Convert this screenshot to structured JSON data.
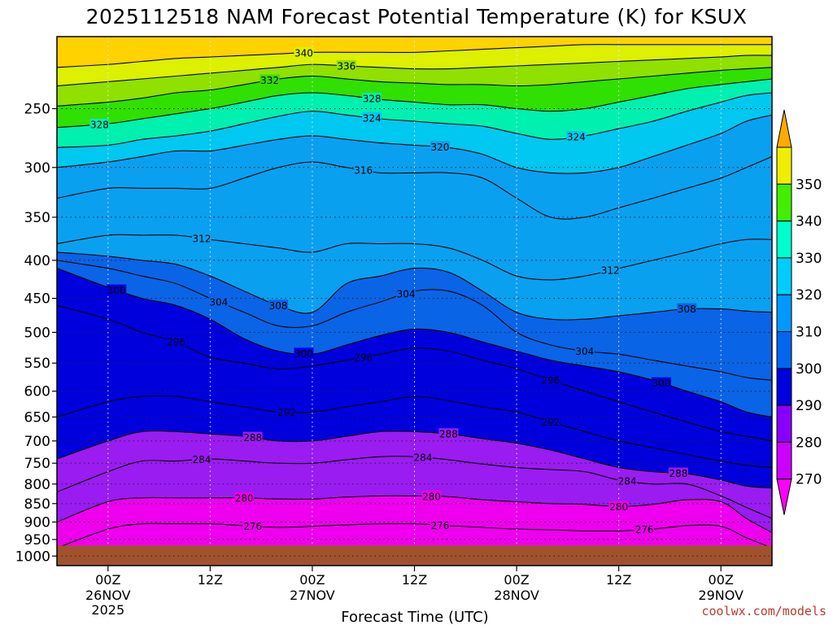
{
  "chart_data": {
    "type": "heatmap",
    "title": "2025112518 NAM Forecast Potential Temperature (K) for KSUX",
    "xlabel": "Forecast Time (UTC)",
    "ylabel": "",
    "credit": "coolwx.com/models",
    "y_scale": "log-pressure",
    "y_ticks": [
      "250",
      "300",
      "350",
      "400",
      "450",
      "500",
      "550",
      "600",
      "650",
      "700",
      "750",
      "800",
      "850",
      "900",
      "950",
      "1000"
    ],
    "x_ticks": [
      {
        "hour": 6,
        "label": "00Z",
        "sub1": "26NOV",
        "sub2": "2025"
      },
      {
        "hour": 18,
        "label": "12Z",
        "sub1": "",
        "sub2": ""
      },
      {
        "hour": 30,
        "label": "00Z",
        "sub1": "27NOV",
        "sub2": ""
      },
      {
        "hour": 42,
        "label": "12Z",
        "sub1": "",
        "sub2": ""
      },
      {
        "hour": 54,
        "label": "00Z",
        "sub1": "28NOV",
        "sub2": ""
      },
      {
        "hour": 66,
        "label": "12Z",
        "sub1": "",
        "sub2": ""
      },
      {
        "hour": 78,
        "label": "00Z",
        "sub1": "29NOV",
        "sub2": ""
      }
    ],
    "x_range_hours": [
      0,
      84
    ],
    "y_range_hpa": [
      200,
      1030
    ],
    "surface_pressure_hpa": 968,
    "colorbar": {
      "levels": [
        "270",
        "280",
        "290",
        "300",
        "310",
        "320",
        "330",
        "340",
        "350"
      ],
      "colors": [
        "#ff00ff",
        "#cc00ff",
        "#8800ff",
        "#0000dd",
        "#0066ee",
        "#0099ff",
        "#00ccff",
        "#00ffcc",
        "#44ee00",
        "#eeee00",
        "#ffaa00"
      ]
    },
    "profile_hours": [
      0,
      6,
      10,
      14,
      18,
      22,
      26,
      30,
      34,
      38,
      42,
      46,
      50,
      54,
      58,
      62,
      66,
      70,
      74,
      78,
      81,
      84
    ],
    "series": [
      {
        "name": "276",
        "p": [
          975,
          920,
          905,
          905,
          905,
          910,
          915,
          912,
          908,
          905,
          905,
          910,
          915,
          920,
          922,
          925,
          925,
          920,
          910,
          912,
          945,
          975
        ]
      },
      {
        "name": "280",
        "p": [
          900,
          845,
          835,
          835,
          835,
          835,
          838,
          838,
          833,
          830,
          830,
          832,
          840,
          845,
          850,
          852,
          858,
          852,
          840,
          845,
          890,
          930
        ]
      },
      {
        "name": "284",
        "p": [
          820,
          770,
          745,
          745,
          740,
          745,
          750,
          750,
          742,
          735,
          735,
          742,
          752,
          760,
          765,
          770,
          790,
          800,
          800,
          830,
          860,
          890
        ]
      },
      {
        "name": "288",
        "p": [
          740,
          700,
          680,
          680,
          685,
          690,
          700,
          700,
          690,
          680,
          680,
          685,
          695,
          705,
          720,
          740,
          760,
          770,
          775,
          790,
          805,
          810
        ]
      },
      {
        "name": "292",
        "p": [
          650,
          620,
          610,
          610,
          620,
          630,
          640,
          640,
          630,
          620,
          610,
          618,
          630,
          640,
          660,
          680,
          700,
          715,
          730,
          745,
          755,
          760
        ]
      },
      {
        "name": "296",
        "p": [
          460,
          480,
          500,
          515,
          540,
          550,
          560,
          555,
          545,
          535,
          525,
          530,
          545,
          560,
          580,
          600,
          620,
          640,
          660,
          680,
          690,
          700
        ]
      },
      {
        "name": "300",
        "p": [
          410,
          435,
          450,
          460,
          480,
          510,
          530,
          535,
          520,
          505,
          495,
          500,
          515,
          530,
          545,
          555,
          565,
          580,
          600,
          620,
          640,
          650
        ]
      },
      {
        "name": "304",
        "p": [
          400,
          410,
          420,
          430,
          450,
          470,
          490,
          490,
          470,
          455,
          440,
          440,
          460,
          500,
          520,
          530,
          535,
          545,
          555,
          565,
          575,
          580
        ]
      },
      {
        "name": "308",
        "p": [
          390,
          395,
          400,
          405,
          420,
          440,
          460,
          470,
          430,
          420,
          410,
          415,
          440,
          470,
          480,
          480,
          475,
          470,
          465,
          465,
          468,
          470
        ]
      },
      {
        "name": "312",
        "p": [
          380,
          370,
          370,
          370,
          375,
          380,
          385,
          390,
          380,
          380,
          380,
          385,
          400,
          420,
          425,
          420,
          410,
          400,
          390,
          380,
          375,
          375
        ]
      },
      {
        "name": "316",
        "p": [
          330,
          320,
          320,
          320,
          320,
          310,
          300,
          295,
          300,
          305,
          305,
          305,
          310,
          330,
          350,
          350,
          340,
          330,
          320,
          310,
          300,
          290
        ]
      },
      {
        "name": "320",
        "p": [
          300,
          295,
          290,
          285,
          285,
          280,
          275,
          272,
          275,
          278,
          280,
          282,
          288,
          300,
          305,
          305,
          300,
          290,
          280,
          270,
          260,
          255
        ]
      },
      {
        "name": "324",
        "p": [
          282,
          280,
          275,
          272,
          268,
          262,
          256,
          252,
          255,
          258,
          260,
          262,
          264,
          270,
          275,
          272,
          266,
          260,
          252,
          245,
          240,
          238
        ]
      },
      {
        "name": "328",
        "p": [
          265,
          262,
          258,
          254,
          250,
          245,
          240,
          238,
          240,
          243,
          245,
          247,
          247,
          250,
          252,
          250,
          245,
          240,
          235,
          232,
          230,
          228
        ]
      },
      {
        "name": "332",
        "p": [
          248,
          245,
          242,
          238,
          236,
          232,
          228,
          226,
          228,
          230,
          231,
          232,
          232,
          233,
          232,
          230,
          228,
          226,
          224,
          222,
          221,
          220
        ]
      },
      {
        "name": "336",
        "p": [
          233,
          230,
          228,
          226,
          224,
          222,
          220,
          218,
          219,
          220,
          221,
          221,
          220,
          219,
          218,
          217,
          216,
          215,
          214,
          213,
          212,
          212
        ]
      },
      {
        "name": "340",
        "p": [
          220,
          218,
          216,
          214,
          213,
          212,
          211,
          210,
          210,
          210,
          210,
          209,
          208,
          207,
          206,
          205,
          205,
          205,
          205,
          205,
          205,
          205
        ]
      }
    ],
    "contour_labels": [
      {
        "text": "340",
        "hour": 29,
        "series": "340"
      },
      {
        "text": "336",
        "hour": 34,
        "series": "336"
      },
      {
        "text": "332",
        "hour": 25,
        "series": "332"
      },
      {
        "text": "328",
        "hour": 37,
        "series": "328"
      },
      {
        "text": "324",
        "hour": 37,
        "series": "324"
      },
      {
        "text": "324",
        "hour": 61,
        "series": "324"
      },
      {
        "text": "328",
        "hour": 5,
        "series": "328"
      },
      {
        "text": "316",
        "hour": 36,
        "series": "316"
      },
      {
        "text": "320",
        "hour": 45,
        "series": "320"
      },
      {
        "text": "312",
        "hour": 17,
        "series": "312"
      },
      {
        "text": "308",
        "hour": 26,
        "series": "308"
      },
      {
        "text": "304",
        "hour": 41,
        "series": "304"
      },
      {
        "text": "312",
        "hour": 65,
        "series": "312"
      },
      {
        "text": "300",
        "hour": 7,
        "series": "300"
      },
      {
        "text": "304",
        "hour": 19,
        "series": "304"
      },
      {
        "text": "308",
        "hour": 74,
        "series": "308"
      },
      {
        "text": "296",
        "hour": 14,
        "series": "296"
      },
      {
        "text": "300",
        "hour": 29,
        "series": "300"
      },
      {
        "text": "296",
        "hour": 36,
        "series": "296"
      },
      {
        "text": "304",
        "hour": 62,
        "series": "304"
      },
      {
        "text": "296",
        "hour": 58,
        "series": "296"
      },
      {
        "text": "292",
        "hour": 27,
        "series": "292"
      },
      {
        "text": "292",
        "hour": 58,
        "series": "292"
      },
      {
        "text": "300",
        "hour": 71,
        "series": "300"
      },
      {
        "text": "288",
        "hour": 23,
        "series": "288"
      },
      {
        "text": "288",
        "hour": 46,
        "series": "288"
      },
      {
        "text": "284",
        "hour": 17,
        "series": "284"
      },
      {
        "text": "284",
        "hour": 43,
        "series": "284"
      },
      {
        "text": "288",
        "hour": 73,
        "series": "288"
      },
      {
        "text": "284",
        "hour": 67,
        "series": "284"
      },
      {
        "text": "280",
        "hour": 22,
        "series": "280"
      },
      {
        "text": "280",
        "hour": 44,
        "series": "280"
      },
      {
        "text": "280",
        "hour": 66,
        "series": "280"
      },
      {
        "text": "276",
        "hour": 23,
        "series": "276"
      },
      {
        "text": "276",
        "hour": 45,
        "series": "276"
      },
      {
        "text": "276",
        "hour": 69,
        "series": "276"
      }
    ]
  }
}
